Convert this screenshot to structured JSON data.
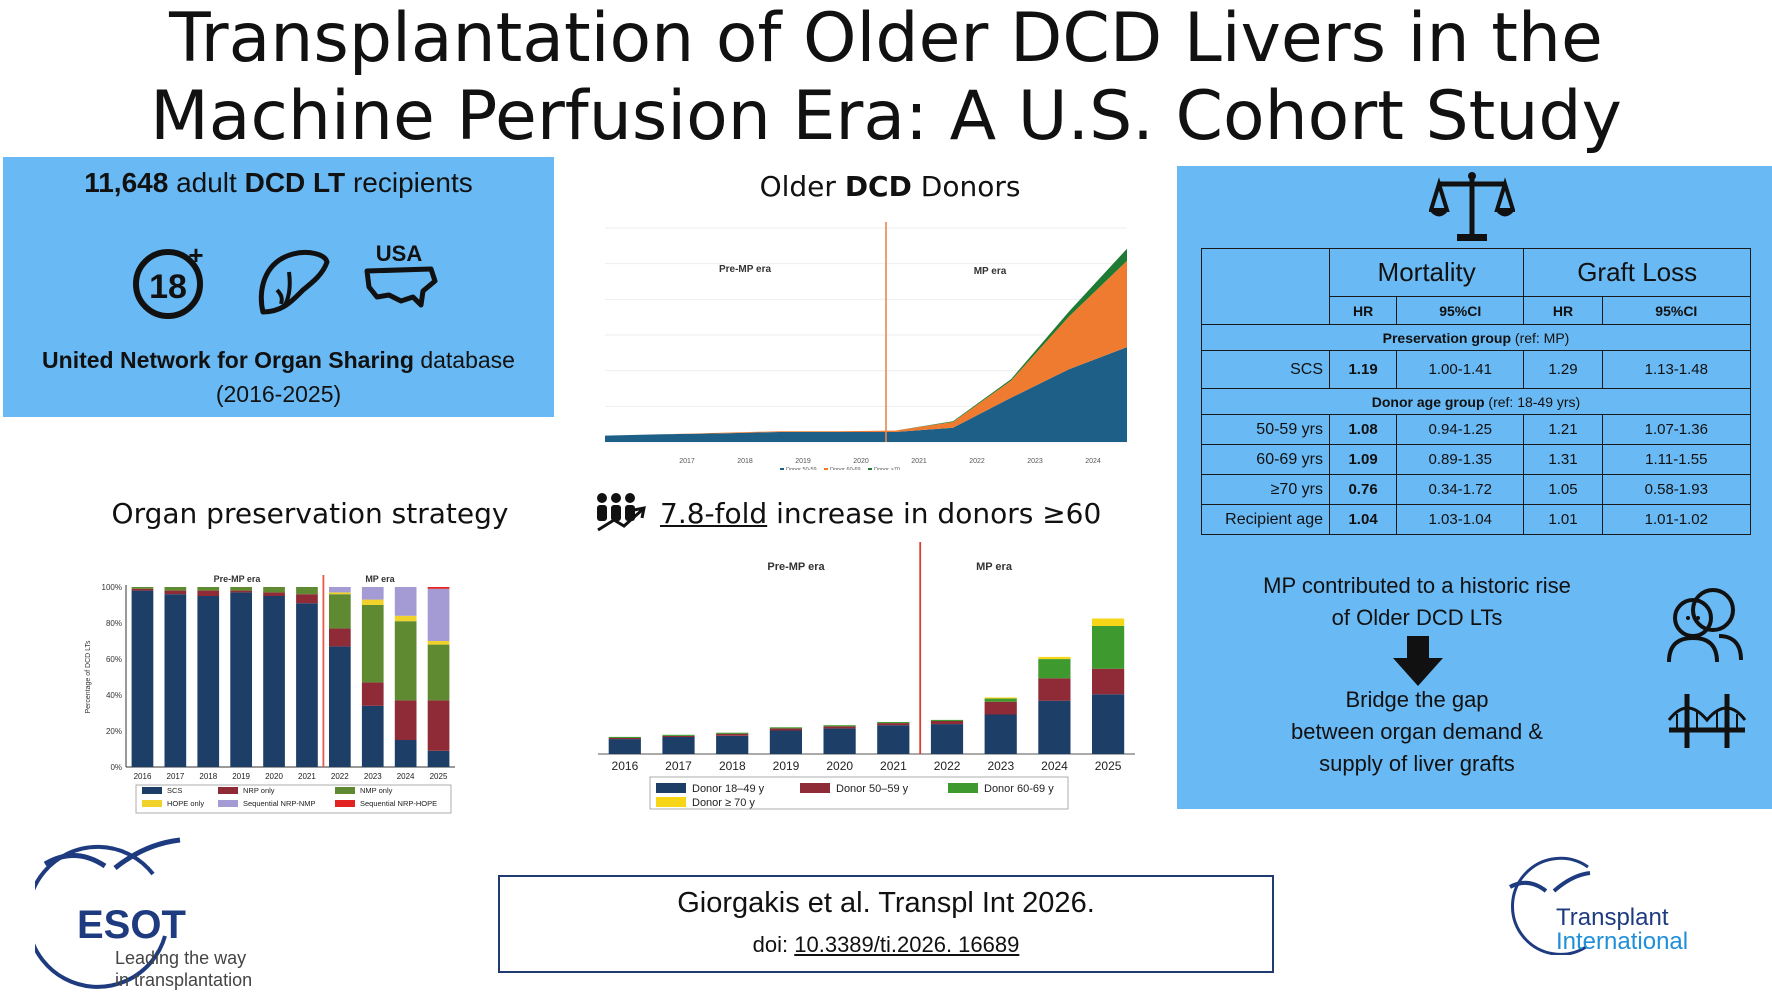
{
  "title": {
    "line1": "Transplantation of Older DCD Livers in the",
    "line2": "Machine Perfusion Era: A U.S. Cohort Study"
  },
  "cohort": {
    "count": "11,648",
    "count_pre": "adult",
    "count_bold": "DCD LT",
    "count_post": "recipients",
    "icon_age_text": "18",
    "icon_country_text": "USA",
    "db_bold": "United Network for Organ Sharing",
    "db_rest": "database",
    "years": "(2016-2025)"
  },
  "headings": {
    "older_pre": "Older",
    "older_bold": "DCD",
    "older_post": "Donors",
    "preservation": "Organ preservation strategy",
    "fold_underlined": "7.8-fold",
    "fold_rest": "increase in donors ≥60"
  },
  "eras": {
    "pre": "Pre-MP era",
    "mp": "MP era"
  },
  "chart_data": [
    {
      "type": "area",
      "title": "Older DCD Donors",
      "x": [
        "2016",
        "2017",
        "2018",
        "2019",
        "2020",
        "2021",
        "2022",
        "2023",
        "2024",
        "2025"
      ],
      "x_ticks": [
        "2017",
        "2018",
        "2019",
        "2020",
        "2021",
        "2022",
        "2023",
        "2024",
        "2025"
      ],
      "series": [
        {
          "name": "Donor 50-59",
          "values": [
            9,
            11,
            12,
            14,
            14,
            14,
            20,
            62,
            102,
            133
          ],
          "color": "#1d5f86"
        },
        {
          "name": "Donor 60-69",
          "values": [
            0,
            0,
            1,
            1,
            1,
            2,
            8,
            24,
            74,
            121
          ],
          "color": "#ee7b2f"
        },
        {
          "name": "Donor >70",
          "values": [
            0,
            0,
            0,
            0,
            0,
            0,
            1,
            2,
            7,
            17
          ],
          "color": "#1f7a33"
        }
      ],
      "legend_position": "bottom",
      "ylim": [
        0,
        300
      ],
      "grid": true,
      "era_split_between": [
        "2020",
        "2021"
      ]
    },
    {
      "type": "bar",
      "stacked": true,
      "title": "Organ preservation strategy",
      "ylabel": "Percentage of DCD LTs",
      "categories": [
        "2016",
        "2017",
        "2018",
        "2019",
        "2020",
        "2021",
        "2022",
        "2023",
        "2024",
        "2025"
      ],
      "y_ticks": [
        "0%",
        "20%",
        "40%",
        "60%",
        "80%",
        "100%"
      ],
      "ylim": [
        0,
        100
      ],
      "series": [
        {
          "name": "SCS",
          "values": [
            98,
            96,
            95,
            97,
            95,
            91,
            67,
            34,
            15,
            9
          ],
          "color": "#1d3f67"
        },
        {
          "name": "NRP only",
          "values": [
            1,
            2,
            3,
            1,
            2,
            5,
            10,
            13,
            22,
            28
          ],
          "color": "#8f2a37"
        },
        {
          "name": "NMP only",
          "values": [
            1,
            2,
            2,
            2,
            3,
            4,
            19,
            43,
            44,
            31
          ],
          "color": "#5f8a32"
        },
        {
          "name": "HOPE only",
          "values": [
            0,
            0,
            0,
            0,
            0,
            0,
            1,
            3,
            3,
            2
          ],
          "color": "#f0d22a"
        },
        {
          "name": "Sequential NRP-NMP",
          "values": [
            0,
            0,
            0,
            0,
            0,
            0,
            3,
            7,
            16,
            29
          ],
          "color": "#a49ad4"
        },
        {
          "name": "Sequential NRP-HOPE",
          "values": [
            0,
            0,
            0,
            0,
            0,
            0,
            0,
            0,
            0,
            1
          ],
          "color": "#e32222"
        }
      ],
      "legend_position": "bottom",
      "era_split_between": [
        "2021",
        "2022"
      ]
    },
    {
      "type": "bar",
      "stacked": true,
      "title": "7.8-fold increase in donors ≥60",
      "categories": [
        "2016",
        "2017",
        "2018",
        "2019",
        "2020",
        "2021",
        "2022",
        "2023",
        "2024",
        "2025"
      ],
      "ylim": [
        0,
        180
      ],
      "series": [
        {
          "name": "Donor 18–49 y",
          "values": [
            14,
            16,
            17,
            22,
            24,
            27,
            28,
            37,
            50,
            56
          ],
          "color": "#1d3f67"
        },
        {
          "name": "Donor 50–59 y",
          "values": [
            1,
            1,
            2,
            2,
            2,
            2,
            3,
            12,
            21,
            24
          ],
          "color": "#8f2a37"
        },
        {
          "name": "Donor 60-69 y",
          "values": [
            1,
            1,
            1,
            1,
            1,
            1,
            1,
            3,
            18,
            40
          ],
          "color": "#3e9a2e"
        },
        {
          "name": "Donor ≥ 70 y",
          "values": [
            0,
            0,
            0,
            0,
            0,
            0,
            0,
            1,
            2,
            7
          ],
          "color": "#f7d617"
        }
      ],
      "legend_position": "bottom",
      "era_split_between": [
        "2021",
        "2022"
      ]
    }
  ],
  "hr_table": {
    "mortality": "Mortality",
    "graft_loss": "Graft Loss",
    "hr": "HR",
    "ci": "95%CI",
    "group1_bold": "Preservation group",
    "group1_rest": "(ref: MP)",
    "group2_bold": "Donor age group",
    "group2_rest": "(ref: 18-49 yrs)",
    "rows": [
      {
        "label": "SCS",
        "hr1": "1.19",
        "ci1": "1.00-1.41",
        "hr2": "1.29",
        "ci2": "1.13-1.48"
      },
      {
        "label": "50-59 yrs",
        "hr1": "1.08",
        "ci1": "0.94-1.25",
        "hr2": "1.21",
        "ci2": "1.07-1.36"
      },
      {
        "label": "60-69 yrs",
        "hr1": "1.09",
        "ci1": "0.89-1.35",
        "hr2": "1.31",
        "ci2": "1.11-1.55"
      },
      {
        "label": "≥70 yrs",
        "hr1": "0.76",
        "ci1": "0.34-1.72",
        "hr2": "1.05",
        "ci2": "0.58-1.93"
      },
      {
        "label": "Recipient age",
        "hr1": "1.04",
        "ci1": "1.03-1.04",
        "hr2": "1.01",
        "ci2": "1.01-1.02"
      }
    ]
  },
  "conclusion": {
    "line1": "MP contributed to a historic rise",
    "line2": "of  Older DCD LTs",
    "bridge1": "Bridge the gap",
    "bridge2": "between organ demand &",
    "bridge3": "supply of liver grafts"
  },
  "citation": {
    "ref": "Giorgakis et al. Transpl Int 2026.",
    "doi_label": "doi:",
    "doi": "10.3389/ti.2026.  16689"
  },
  "logos": {
    "esot": "ESOT",
    "esot_tag1": "Leading the way",
    "esot_tag2": "in transplantation",
    "ti1": "Transplant",
    "ti2": "International"
  }
}
